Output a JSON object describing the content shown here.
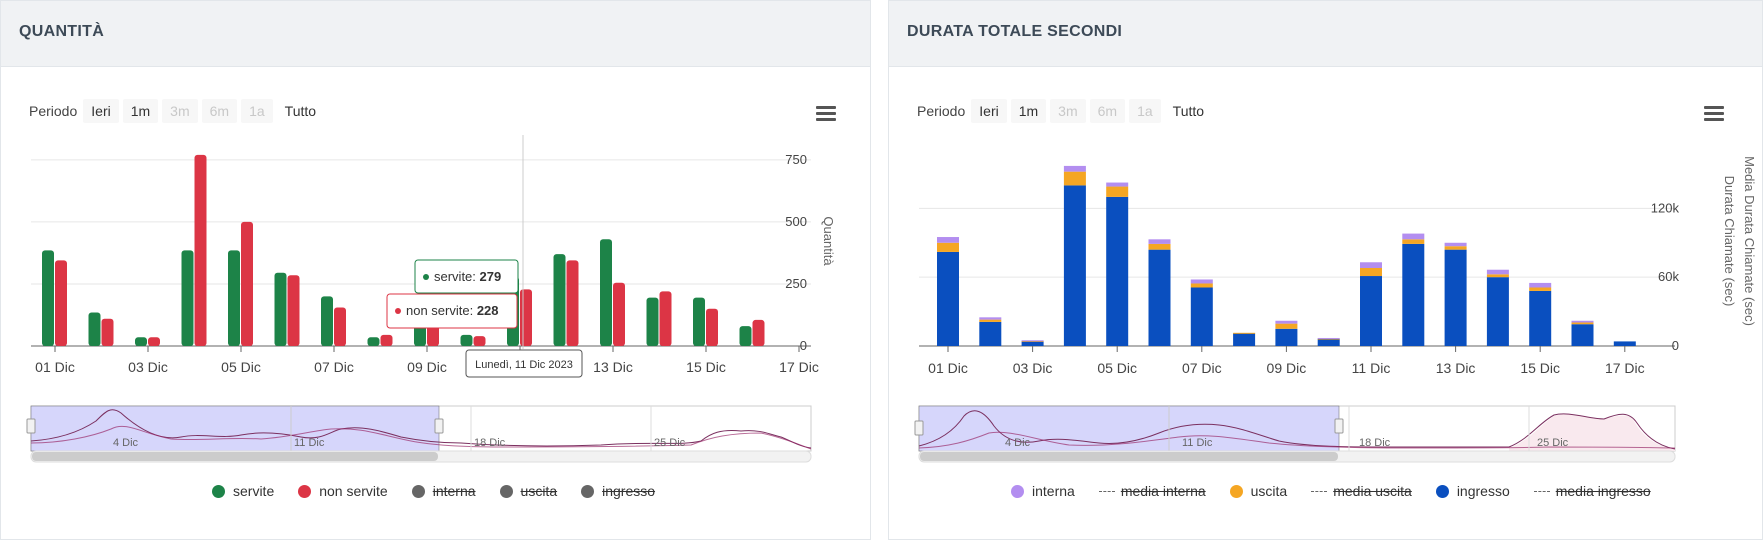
{
  "left": {
    "title": "QUANTITÀ",
    "period_label": "Periodo",
    "period_buttons": [
      "Ieri",
      "1m",
      "3m",
      "6m",
      "1a",
      "Tutto"
    ],
    "yaxis_title": "Quantità",
    "tooltip": {
      "servite_label": "servite: ",
      "servite_value": "279",
      "non_servite_label": "non servite: ",
      "non_servite_value": "228",
      "date": "Lunedì, 11 Dic 2023"
    },
    "navigator_labels": [
      "4 Dic",
      "11 Dic",
      "18 Dic",
      "25 Dic"
    ],
    "legend": [
      {
        "label": "servite",
        "color": "#1d8348",
        "disabled": false
      },
      {
        "label": "non servite",
        "color": "#dc3545",
        "disabled": false
      },
      {
        "label": "interna",
        "color": "#666666",
        "disabled": true
      },
      {
        "label": "uscita",
        "color": "#666666",
        "disabled": true
      },
      {
        "label": "ingresso",
        "color": "#666666",
        "disabled": true
      }
    ]
  },
  "right": {
    "title": "DURATA TOTALE SECONDI",
    "period_label": "Periodo",
    "period_buttons": [
      "Ieri",
      "1m",
      "3m",
      "6m",
      "1a",
      "Tutto"
    ],
    "yaxis_title_1": "Media Durata Chiamate (sec)",
    "yaxis_title_2": "Durata Chiamate (sec)",
    "navigator_labels": [
      "4 Dic",
      "11 Dic",
      "18 Dic",
      "25 Dic"
    ],
    "legend": [
      {
        "label": "interna",
        "color": "#b38ef0",
        "type": "dot",
        "disabled": false
      },
      {
        "label": "media interna",
        "type": "dash",
        "disabled": true
      },
      {
        "label": "uscita",
        "color": "#f5a623",
        "type": "dot",
        "disabled": false
      },
      {
        "label": "media uscita",
        "type": "dash",
        "disabled": true
      },
      {
        "label": "ingresso",
        "color": "#0a4fbf",
        "type": "dot",
        "disabled": false
      },
      {
        "label": "media ingresso",
        "type": "dash",
        "disabled": true
      }
    ]
  },
  "chart_data": [
    {
      "type": "bar",
      "title": "QUANTITÀ",
      "ylabel": "Quantità",
      "ylim": [
        0,
        850
      ],
      "yticks": [
        0,
        250,
        500,
        750
      ],
      "grid": true,
      "legend_position": "bottom",
      "x_tick_labels": [
        "01 Dic",
        "03 Dic",
        "05 Dic",
        "07 Dic",
        "09 Dic",
        "11 Dic",
        "13 Dic",
        "15 Dic",
        "17 Dic"
      ],
      "categories": [
        "01 Dic",
        "02 Dic",
        "03 Dic",
        "04 Dic",
        "05 Dic",
        "06 Dic",
        "07 Dic",
        "08 Dic",
        "09 Dic",
        "10 Dic",
        "11 Dic",
        "12 Dic",
        "13 Dic",
        "14 Dic",
        "15 Dic",
        "16 Dic"
      ],
      "series": [
        {
          "name": "servite",
          "color": "#1d8348",
          "values": [
            385,
            135,
            35,
            385,
            385,
            295,
            200,
            35,
            100,
            45,
            279,
            370,
            430,
            195,
            195,
            80
          ]
        },
        {
          "name": "non servite",
          "color": "#dc3545",
          "values": [
            345,
            110,
            35,
            770,
            500,
            285,
            155,
            45,
            90,
            40,
            228,
            345,
            255,
            220,
            150,
            105
          ]
        }
      ]
    },
    {
      "type": "bar",
      "stacked": true,
      "title": "DURATA TOTALE SECONDI",
      "ylabel": "Durata Chiamate (sec)",
      "ylim": [
        0,
        170000
      ],
      "yticks": [
        0,
        60000,
        120000
      ],
      "ytick_labels": [
        "0",
        "60k",
        "120k"
      ],
      "grid": true,
      "legend_position": "bottom",
      "x_tick_labels": [
        "01 Dic",
        "03 Dic",
        "05 Dic",
        "07 Dic",
        "09 Dic",
        "11 Dic",
        "13 Dic",
        "15 Dic",
        "17 Dic"
      ],
      "categories": [
        "01 Dic",
        "02 Dic",
        "03 Dic",
        "04 Dic",
        "05 Dic",
        "06 Dic",
        "07 Dic",
        "08 Dic",
        "09 Dic",
        "10 Dic",
        "11 Dic",
        "12 Dic",
        "13 Dic",
        "14 Dic",
        "15 Dic",
        "16 Dic",
        "17 Dic"
      ],
      "series": [
        {
          "name": "ingresso",
          "color": "#0a4fbf",
          "values": [
            82000,
            21000,
            4000,
            140000,
            130000,
            84000,
            51000,
            11000,
            15000,
            6000,
            61000,
            89000,
            84000,
            60000,
            48000,
            19000,
            4000
          ]
        },
        {
          "name": "uscita",
          "color": "#f5a623",
          "values": [
            8000,
            2000,
            500,
            12000,
            9000,
            5000,
            3500,
            500,
            4500,
            500,
            7000,
            4000,
            3000,
            2500,
            3000,
            1500,
            0
          ]
        },
        {
          "name": "interna",
          "color": "#b38ef0",
          "values": [
            5000,
            2000,
            500,
            5000,
            3500,
            4000,
            3500,
            0,
            2500,
            500,
            5000,
            5000,
            3000,
            4000,
            4000,
            1500,
            0
          ]
        }
      ]
    }
  ]
}
